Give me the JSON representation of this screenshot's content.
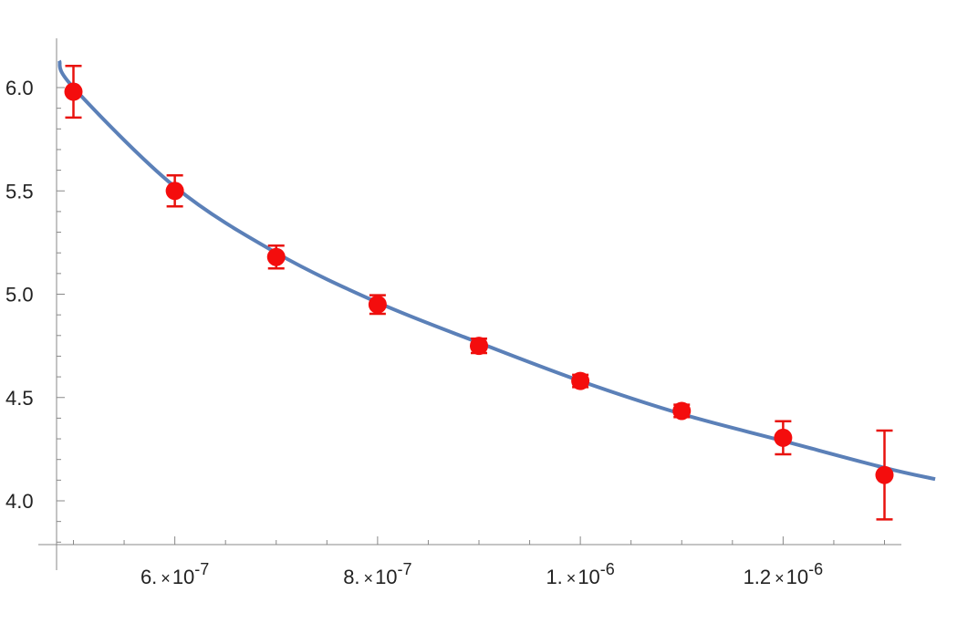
{
  "chart_data": {
    "type": "scatter",
    "title": "",
    "xlabel": "",
    "ylabel": "",
    "xlim": [
      5.35e-07,
      1.35e-06
    ],
    "ylim": [
      3.78,
      6.24
    ],
    "x_ticks": [
      {
        "value": 6e-07,
        "mantissa": "6.",
        "exponent": "-7"
      },
      {
        "value": 8e-07,
        "mantissa": "8.",
        "exponent": "-7"
      },
      {
        "value": 1e-06,
        "mantissa": "1.",
        "exponent": "-6"
      },
      {
        "value": 1.2e-06,
        "mantissa": "1.2",
        "exponent": "-6"
      }
    ],
    "y_ticks": [
      {
        "value": 4.0,
        "label": "4.0"
      },
      {
        "value": 4.5,
        "label": "4.5"
      },
      {
        "value": 5.0,
        "label": "5.0"
      },
      {
        "value": 5.5,
        "label": "5.5"
      },
      {
        "value": 6.0,
        "label": "6.0"
      }
    ],
    "series": [
      {
        "kind": "points-with-error-bars",
        "color": "#f40d0d",
        "x": [
          5e-07,
          6e-07,
          7e-07,
          8e-07,
          9e-07,
          1e-06,
          1.1e-06,
          1.2e-06,
          1.3e-06
        ],
        "y": [
          5.98,
          5.5,
          5.18,
          4.95,
          4.75,
          4.58,
          4.435,
          4.305,
          4.125
        ],
        "y_err": [
          0.125,
          0.075,
          0.055,
          0.045,
          0.035,
          0.03,
          0.03,
          0.08,
          0.215
        ]
      },
      {
        "kind": "fit-curve",
        "color": "#5b80b8",
        "x": [
          4.86e-07,
          5e-07,
          6e-07,
          7e-07,
          8e-07,
          9e-07,
          1e-06,
          1.1e-06,
          1.2e-06,
          1.3e-06,
          1.35e-06
        ],
        "y": [
          6.13,
          6.0,
          5.52,
          5.2,
          4.96,
          4.765,
          4.58,
          4.42,
          4.29,
          4.16,
          4.105
        ]
      }
    ]
  }
}
